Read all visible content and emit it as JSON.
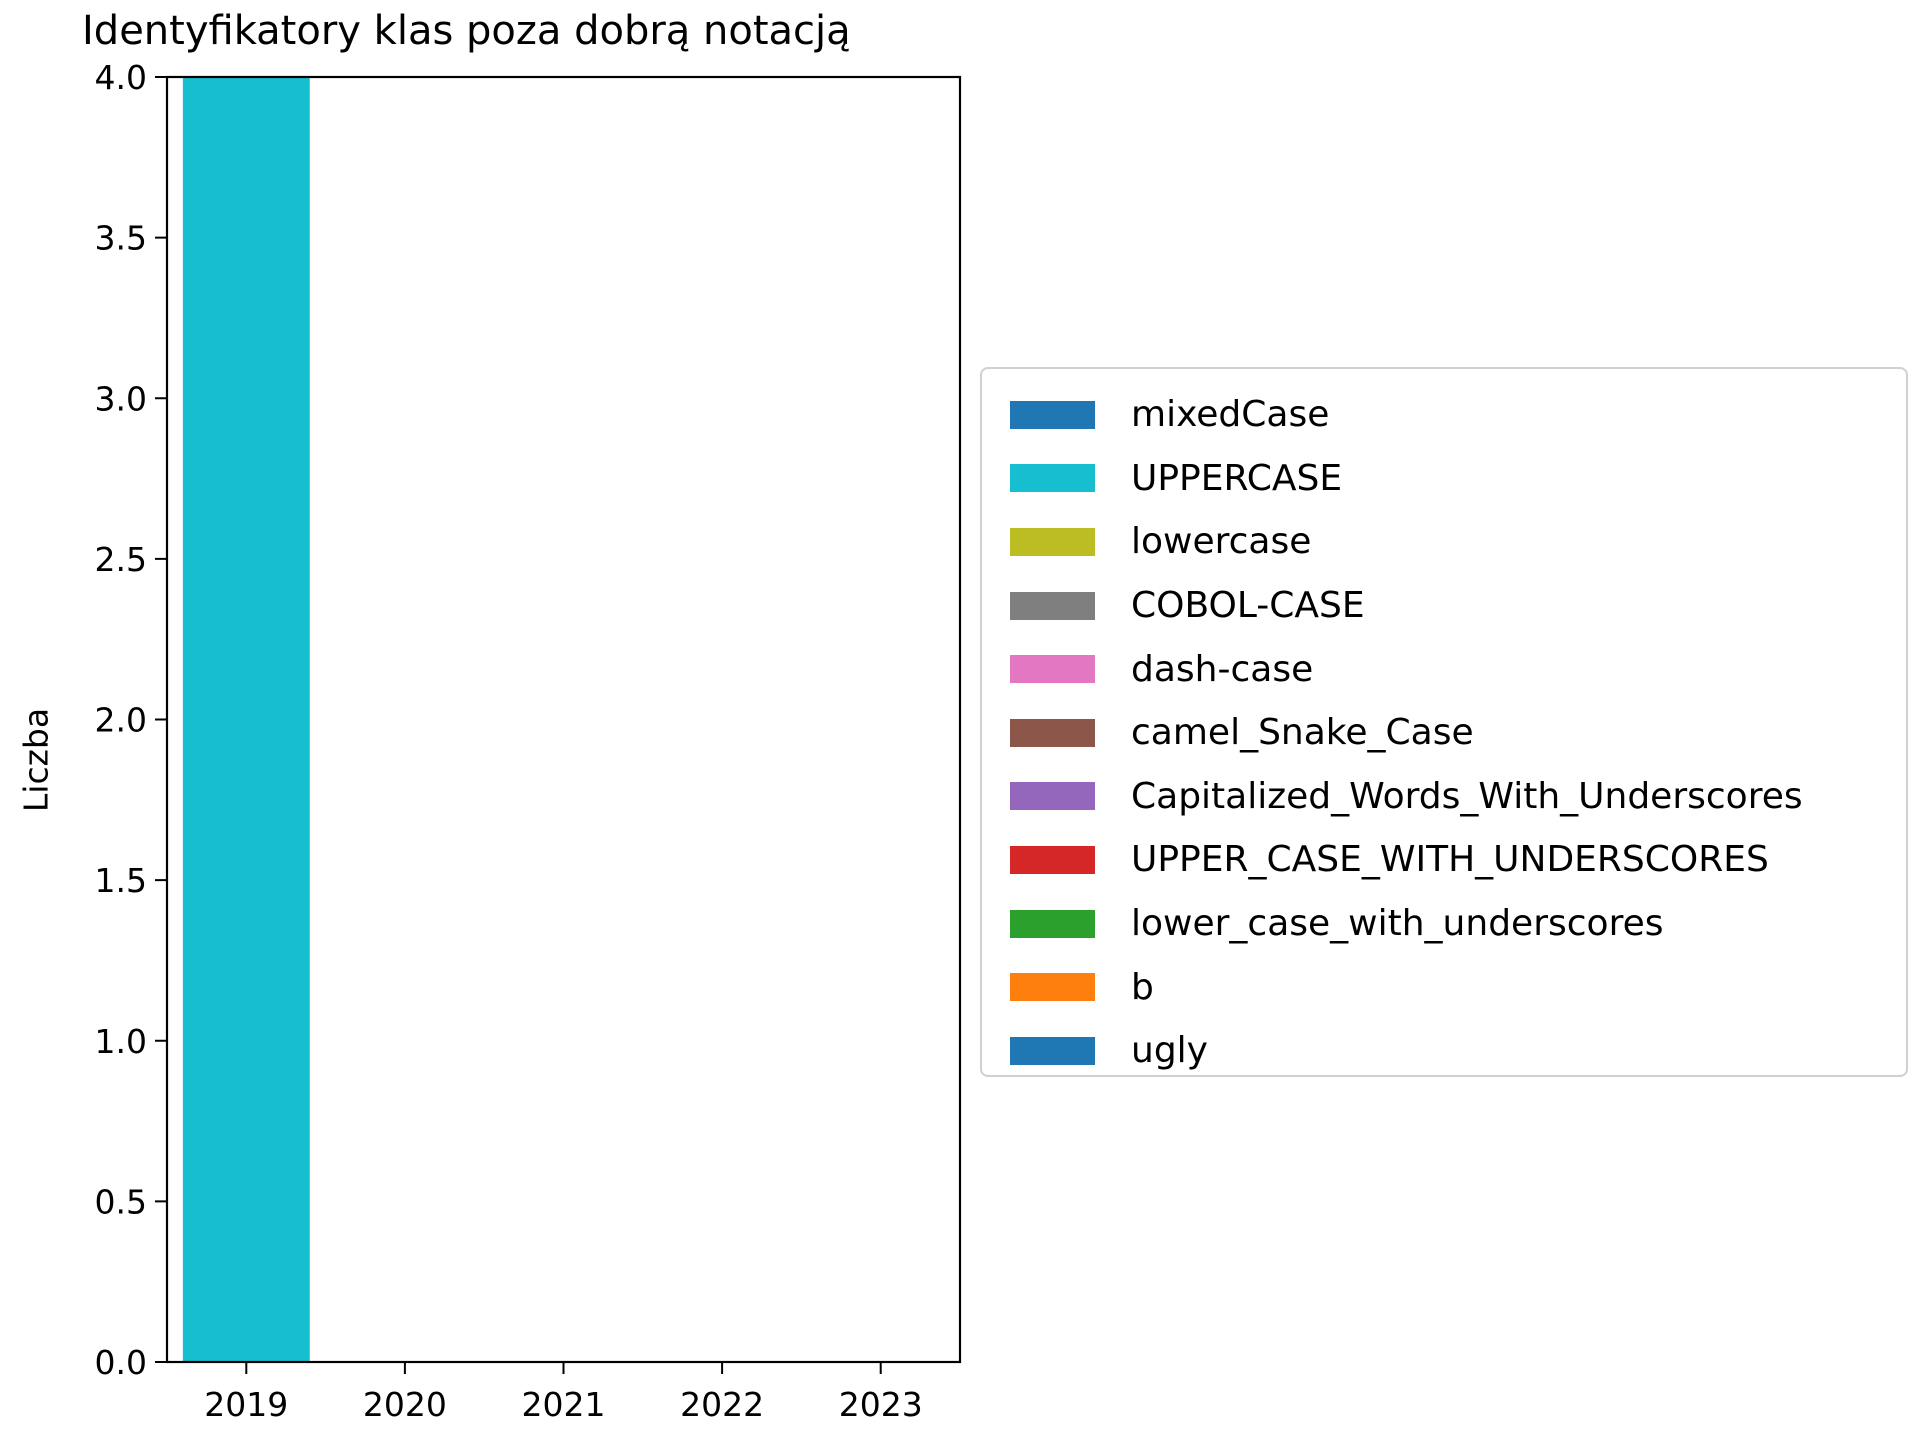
{
  "chart_data": {
    "type": "bar",
    "stacked": true,
    "title": "Identyfikatory klas poza dobrą notacją",
    "xlabel": "",
    "ylabel": "Liczba",
    "categories": [
      "2019",
      "2020",
      "2021",
      "2022",
      "2023"
    ],
    "ylim": [
      0,
      4.0
    ],
    "yticks": [
      "0.0",
      "0.5",
      "1.0",
      "1.5",
      "2.0",
      "2.5",
      "3.0",
      "3.5",
      "4.0"
    ],
    "grid": false,
    "legend_position": "right",
    "series": [
      {
        "name": "mixedCase",
        "color": "#1f77b4",
        "values": [
          0,
          0,
          0,
          0,
          0
        ]
      },
      {
        "name": "UPPERCASE",
        "color": "#17becf",
        "values": [
          4,
          0,
          0,
          0,
          0
        ]
      },
      {
        "name": "lowercase",
        "color": "#bcbd22",
        "values": [
          0,
          0,
          0,
          0,
          0
        ]
      },
      {
        "name": "COBOL-CASE",
        "color": "#7f7f7f",
        "values": [
          0,
          0,
          0,
          0,
          0
        ]
      },
      {
        "name": "dash-case",
        "color": "#e377c2",
        "values": [
          0,
          0,
          0,
          0,
          0
        ]
      },
      {
        "name": "camel_Snake_Case",
        "color": "#8c564b",
        "values": [
          0,
          0,
          0,
          0,
          0
        ]
      },
      {
        "name": "Capitalized_Words_With_Underscores",
        "color": "#9467bd",
        "values": [
          0,
          0,
          0,
          0,
          0
        ]
      },
      {
        "name": "UPPER_CASE_WITH_UNDERSCORES",
        "color": "#d62728",
        "values": [
          0,
          0,
          0,
          0,
          0
        ]
      },
      {
        "name": "lower_case_with_underscores",
        "color": "#2ca02c",
        "values": [
          0,
          0,
          0,
          0,
          0
        ]
      },
      {
        "name": "b",
        "color": "#ff7f0e",
        "values": [
          0,
          0,
          0,
          0,
          0
        ]
      },
      {
        "name": "ugly",
        "color": "#1f77b4",
        "values": [
          0,
          0,
          0,
          0,
          0
        ]
      }
    ]
  }
}
